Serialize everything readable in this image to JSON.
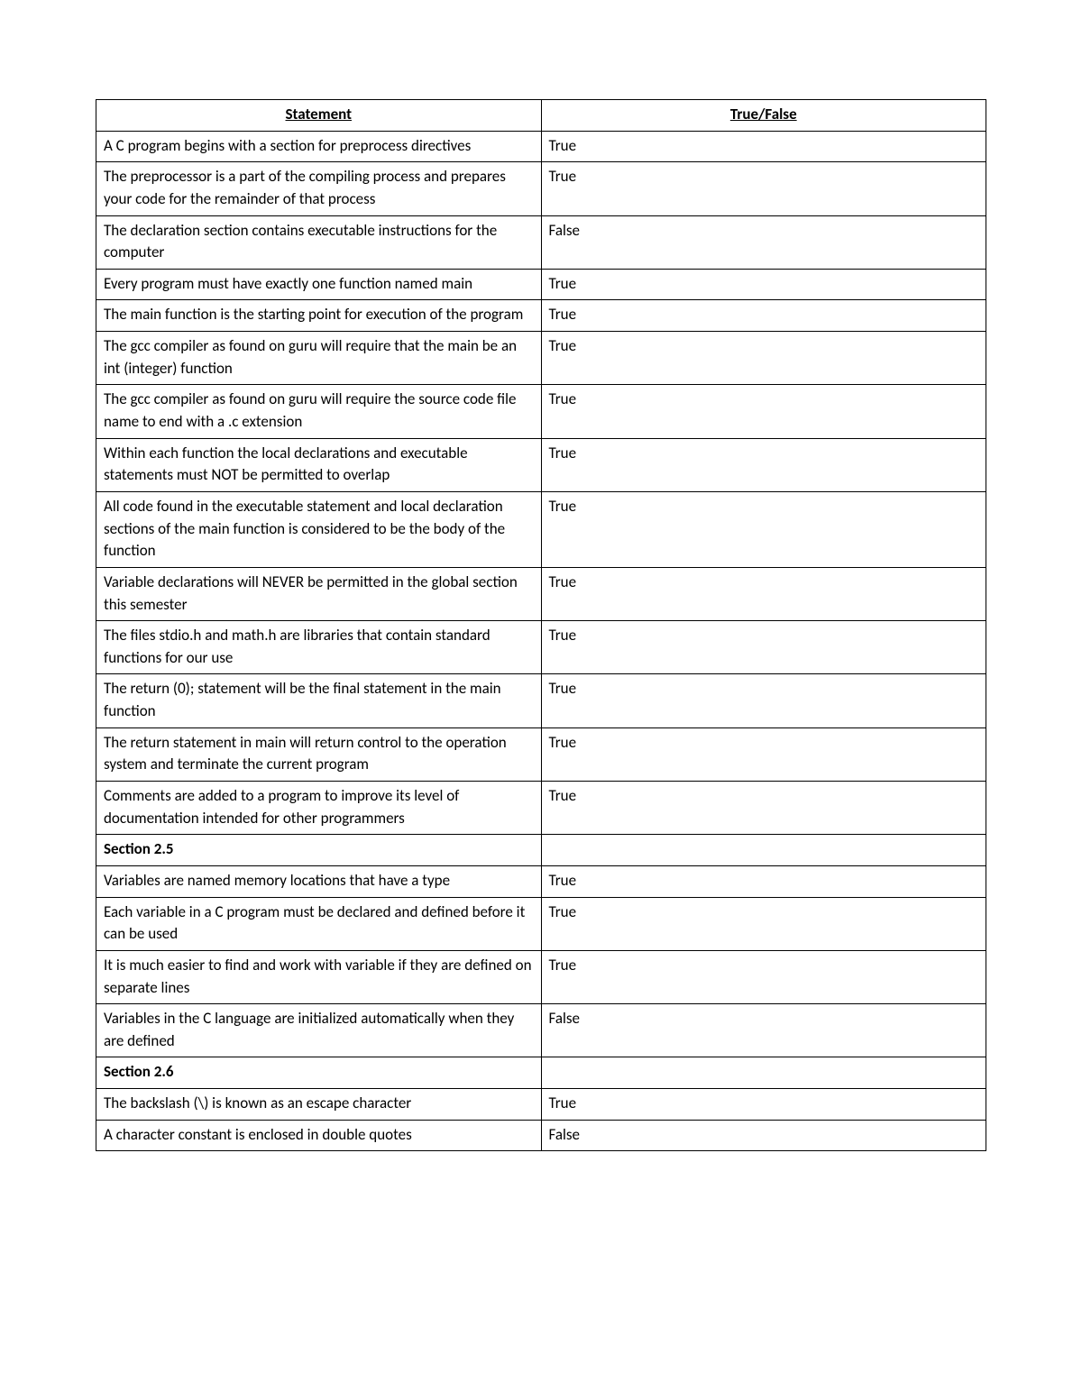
{
  "table": {
    "headers": {
      "statement": "Statement",
      "answer": "True/False"
    },
    "border_color": "#000000",
    "background_color": "#ffffff",
    "text_color": "#000000",
    "font_size_pt": 12,
    "rows": [
      {
        "type": "data",
        "statement": "A C program begins with a section for preprocess directives",
        "answer": "True"
      },
      {
        "type": "data",
        "statement": "The preprocessor is a part of the compiling process and prepares your code for the remainder of that process",
        "answer": "True"
      },
      {
        "type": "data",
        "statement": "The declaration section contains executable instructions for the computer",
        "answer": "False"
      },
      {
        "type": "data",
        "statement": "Every program must have exactly one function named main",
        "answer": "True"
      },
      {
        "type": "data",
        "statement": "The main function is the starting point for execution of the program",
        "answer": "True"
      },
      {
        "type": "data",
        "statement": "The gcc compiler as found on guru will require that the main be an int (integer) function",
        "answer": "True"
      },
      {
        "type": "data",
        "statement": "The gcc compiler as found on guru will require the source code file name to end with a .c extension",
        "answer": "True"
      },
      {
        "type": "data",
        "statement": "Within each function the local declarations and executable statements must NOT be permitted to overlap",
        "answer": "True"
      },
      {
        "type": "data",
        "statement": "All code found in the executable statement and local declaration sections of the main function is considered to be the body of the function",
        "answer": "True"
      },
      {
        "type": "data",
        "statement": "Variable declarations will NEVER be permitted in the global section this semester",
        "answer": "True"
      },
      {
        "type": "data",
        "statement": "The files stdio.h and math.h are libraries that contain standard functions for our use",
        "answer": "True"
      },
      {
        "type": "data",
        "statement": "The return (0); statement will be the final statement in the main function",
        "answer": "True"
      },
      {
        "type": "data",
        "statement": "The return statement in main will return control to the operation system and terminate the current program",
        "answer": "True"
      },
      {
        "type": "data",
        "statement": "Comments are added to a program to improve its level of documentation intended for other programmers",
        "answer": "True"
      },
      {
        "type": "section",
        "statement": "Section 2.5",
        "answer": ""
      },
      {
        "type": "data",
        "statement": "Variables are named memory locations that have a type",
        "answer": "True"
      },
      {
        "type": "data",
        "statement": "Each variable in a C program must be declared and defined before it can be used",
        "answer": "True"
      },
      {
        "type": "data",
        "statement": "It is much easier to find and work with variable if they are defined on separate lines",
        "answer": "True"
      },
      {
        "type": "data",
        "statement": "Variables in the C language are initialized automatically when they are defined",
        "answer": "False"
      },
      {
        "type": "section",
        "statement": "Section 2.6",
        "answer": ""
      },
      {
        "type": "data",
        "statement": "The backslash (\\) is known as an escape character",
        "answer": "True"
      },
      {
        "type": "data",
        "statement": "A character constant is enclosed in double quotes",
        "answer": "False"
      }
    ]
  }
}
